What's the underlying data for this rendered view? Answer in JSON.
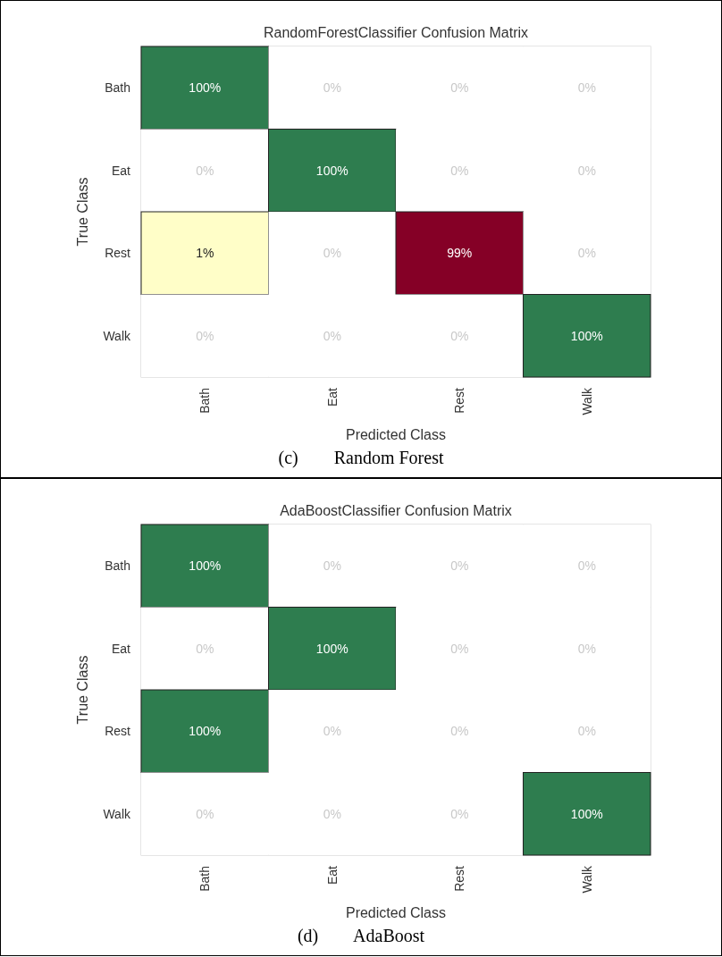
{
  "chart_data": [
    {
      "type": "heatmap",
      "title": "RandomForestClassifier Confusion Matrix",
      "xlabel": "Predicted Class",
      "ylabel": "True Class",
      "categories": [
        "Bath",
        "Eat",
        "Rest",
        "Walk"
      ],
      "y_categories": [
        "Bath",
        "Eat",
        "Rest",
        "Walk"
      ],
      "cells": [
        [
          100,
          0,
          0,
          0
        ],
        [
          0,
          100,
          0,
          0
        ],
        [
          1,
          0,
          99,
          0
        ],
        [
          0,
          0,
          0,
          100
        ]
      ],
      "cell_labels": [
        [
          "100%",
          "0%",
          "0%",
          "0%"
        ],
        [
          "0%",
          "100%",
          "0%",
          "0%"
        ],
        [
          "1%",
          "0%",
          "99%",
          "0%"
        ],
        [
          "0%",
          "0%",
          "0%",
          "100%"
        ]
      ],
      "annotations": [
        "(c)        Random Forest"
      ]
    },
    {
      "type": "heatmap",
      "title": "AdaBoostClassifier Confusion Matrix",
      "xlabel": "Predicted Class",
      "ylabel": "True Class",
      "categories": [
        "Bath",
        "Eat",
        "Rest",
        "Walk"
      ],
      "y_categories": [
        "Bath",
        "Eat",
        "Rest",
        "Walk"
      ],
      "cells": [
        [
          100,
          0,
          0,
          0
        ],
        [
          0,
          100,
          0,
          0
        ],
        [
          100,
          0,
          0,
          0
        ],
        [
          0,
          0,
          0,
          100
        ]
      ],
      "cell_labels": [
        [
          "100%",
          "0%",
          "0%",
          "0%"
        ],
        [
          "0%",
          "100%",
          "0%",
          "0%"
        ],
        [
          "100%",
          "0%",
          "0%",
          "0%"
        ],
        [
          "0%",
          "0%",
          "0%",
          "100%"
        ]
      ],
      "annotations": [
        "(d)        AdaBoost"
      ]
    }
  ]
}
